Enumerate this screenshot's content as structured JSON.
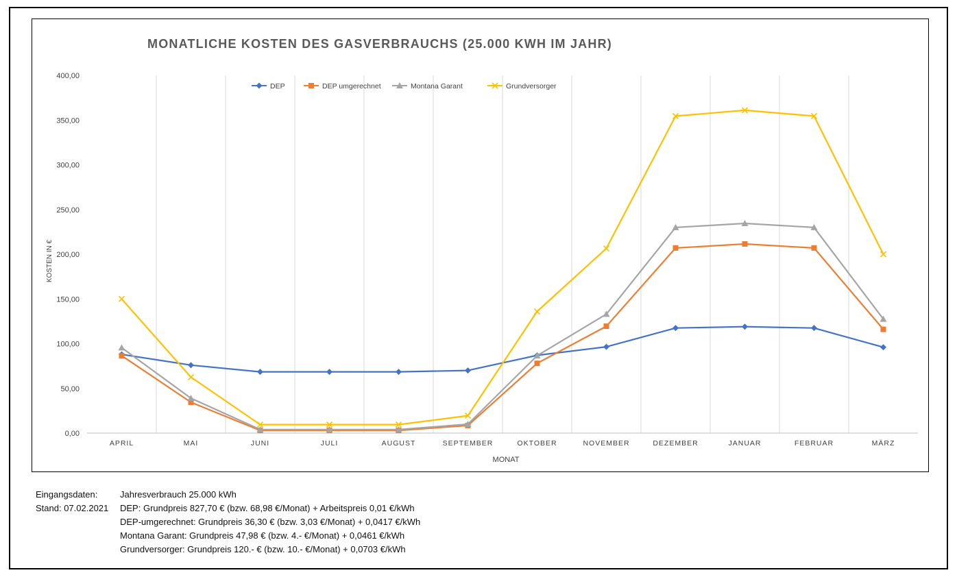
{
  "chart_data": {
    "type": "line",
    "title": "MONATLICHE KOSTEN DES GASVERBRAUCHS (25.000 KWH IM JAHR)",
    "xlabel": "MONAT",
    "ylabel": "KOSTEN IN €",
    "ylim": [
      0,
      400
    ],
    "y_ticks": [
      "0,00",
      "50,00",
      "100,00",
      "150,00",
      "200,00",
      "250,00",
      "300,00",
      "350,00",
      "400,00"
    ],
    "categories": [
      "APRIL",
      "MAI",
      "JUNI",
      "JULI",
      "AUGUST",
      "SEPTEMBER",
      "OKTOBER",
      "NOVEMBER",
      "DEZEMBER",
      "JANUAR",
      "FEBRUAR",
      "MÄRZ"
    ],
    "legend_position": "top",
    "series": [
      {
        "name": "DEP",
        "color": "#4472C4",
        "marker": "diamond",
        "values": [
          88,
          76,
          68.5,
          68.5,
          68.5,
          70,
          87,
          96.5,
          117.5,
          119,
          117.5,
          96
        ]
      },
      {
        "name": "DEP umgerechnet",
        "color": "#ED7D31",
        "marker": "square",
        "values": [
          86.5,
          34.5,
          3,
          3,
          3,
          8.5,
          78,
          119.5,
          207,
          211.5,
          207,
          116
        ]
      },
      {
        "name": "Montana Garant",
        "color": "#A5A5A5",
        "marker": "triangle",
        "values": [
          95.5,
          39,
          4,
          4,
          4,
          10,
          86.5,
          133,
          230,
          234.5,
          230,
          127.5
        ]
      },
      {
        "name": "Grundversorger",
        "color": "#FFC000",
        "marker": "x",
        "values": [
          150,
          62.5,
          9.5,
          9.5,
          9.5,
          19.5,
          136,
          206.5,
          354.5,
          361,
          354.5,
          200
        ]
      }
    ]
  },
  "info": {
    "label_input": "Eingangsdaten:",
    "label_date": "Stand: 07.02.2021",
    "lines": [
      "Jahresverbrauch 25.000 kWh",
      "DEP: Grundpreis 827,70 € (bzw. 68,98 €/Monat) + Arbeitspreis 0,01 €/kWh",
      "DEP-umgerechnet: Grundpreis 36,30 € (bzw. 3,03 €/Monat) + 0,0417 €/kWh",
      "Montana Garant: Grundpreis 47,98 € (bzw. 4.- €/Monat) + 0,0461 €/kWh",
      "Grundversorger: Grundpreis 120.- € (bzw. 10.- €/Monat) + 0,0703 €/kWh"
    ]
  }
}
